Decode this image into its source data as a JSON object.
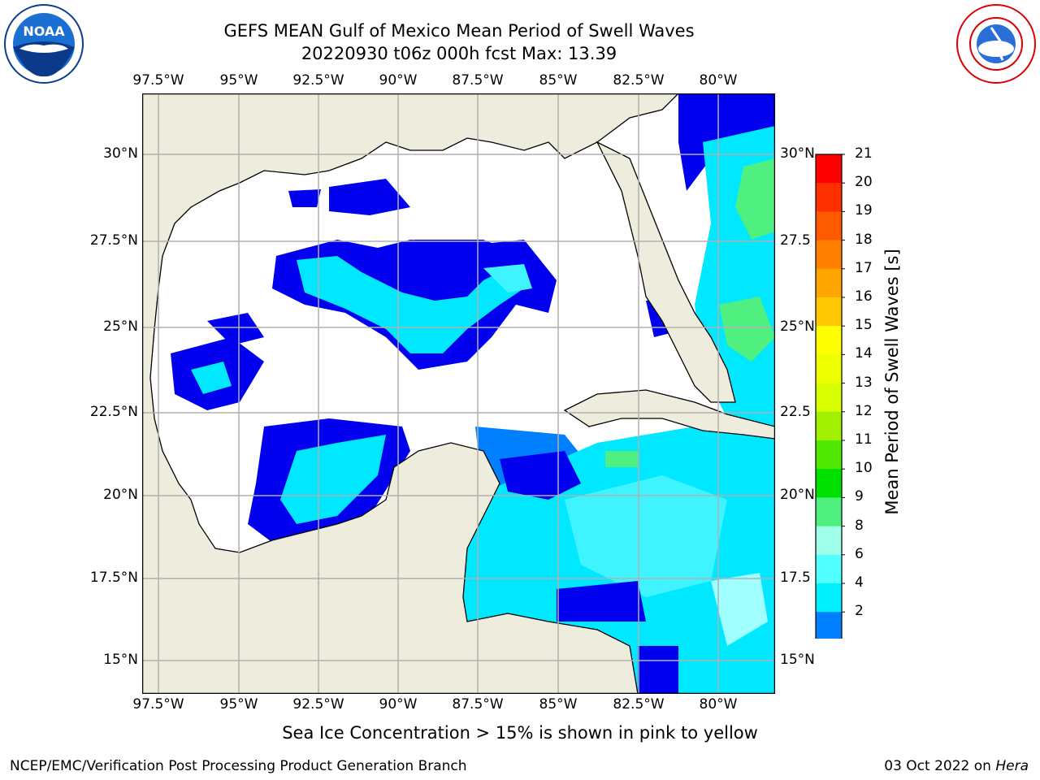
{
  "title": {
    "line1": "GEFS MEAN Gulf of Mexico Mean Period of Swell Waves",
    "line2": "20220930 t06z 000h fcst   Max: 13.39"
  },
  "map": {
    "lon_labels": [
      "97.5°W",
      "95°W",
      "92.5°W",
      "90°W",
      "87.5°W",
      "85°W",
      "82.5°W",
      "80°W"
    ],
    "lat_labels": [
      "30°N",
      "27.5°N",
      "25°N",
      "22.5°N",
      "20°N",
      "17.5°N",
      "15°N"
    ],
    "lat_labels_right": [
      "30°N",
      "27.5",
      "25°N",
      "22.5",
      "20°N",
      "17.5",
      "15°N"
    ],
    "land_color": "#eeecdc",
    "grid_color": "#b0b0b0"
  },
  "colorbar": {
    "title": "Mean Period of Swell Waves [s]",
    "ticks": [
      "21",
      "20",
      "19",
      "18",
      "17",
      "16",
      "15",
      "14",
      "13",
      "12",
      "11",
      "10",
      "9",
      "8",
      "6",
      "4",
      "2"
    ],
    "colors_top_to_bottom": [
      "#ff0000",
      "#ff3000",
      "#ff5a00",
      "#ff8000",
      "#ffa500",
      "#ffc800",
      "#ffff00",
      "#eeff00",
      "#d8ff00",
      "#a0f000",
      "#50e800",
      "#00e000",
      "#50f080",
      "#a0ffe8",
      "#50ffff",
      "#00f0ff",
      "#0080ff"
    ],
    "extend_color": "#0000ff"
  },
  "subtitle": "Sea Ice Concentration > 15% is shown in pink to yellow",
  "footer": {
    "left": "NCEP/EMC/Verification Post Processing Product Generation Branch",
    "right_date": "03 Oct 2022 on ",
    "right_host": "Hera"
  },
  "logos": {
    "left": "noaa-logo",
    "right": "nws-logo"
  }
}
